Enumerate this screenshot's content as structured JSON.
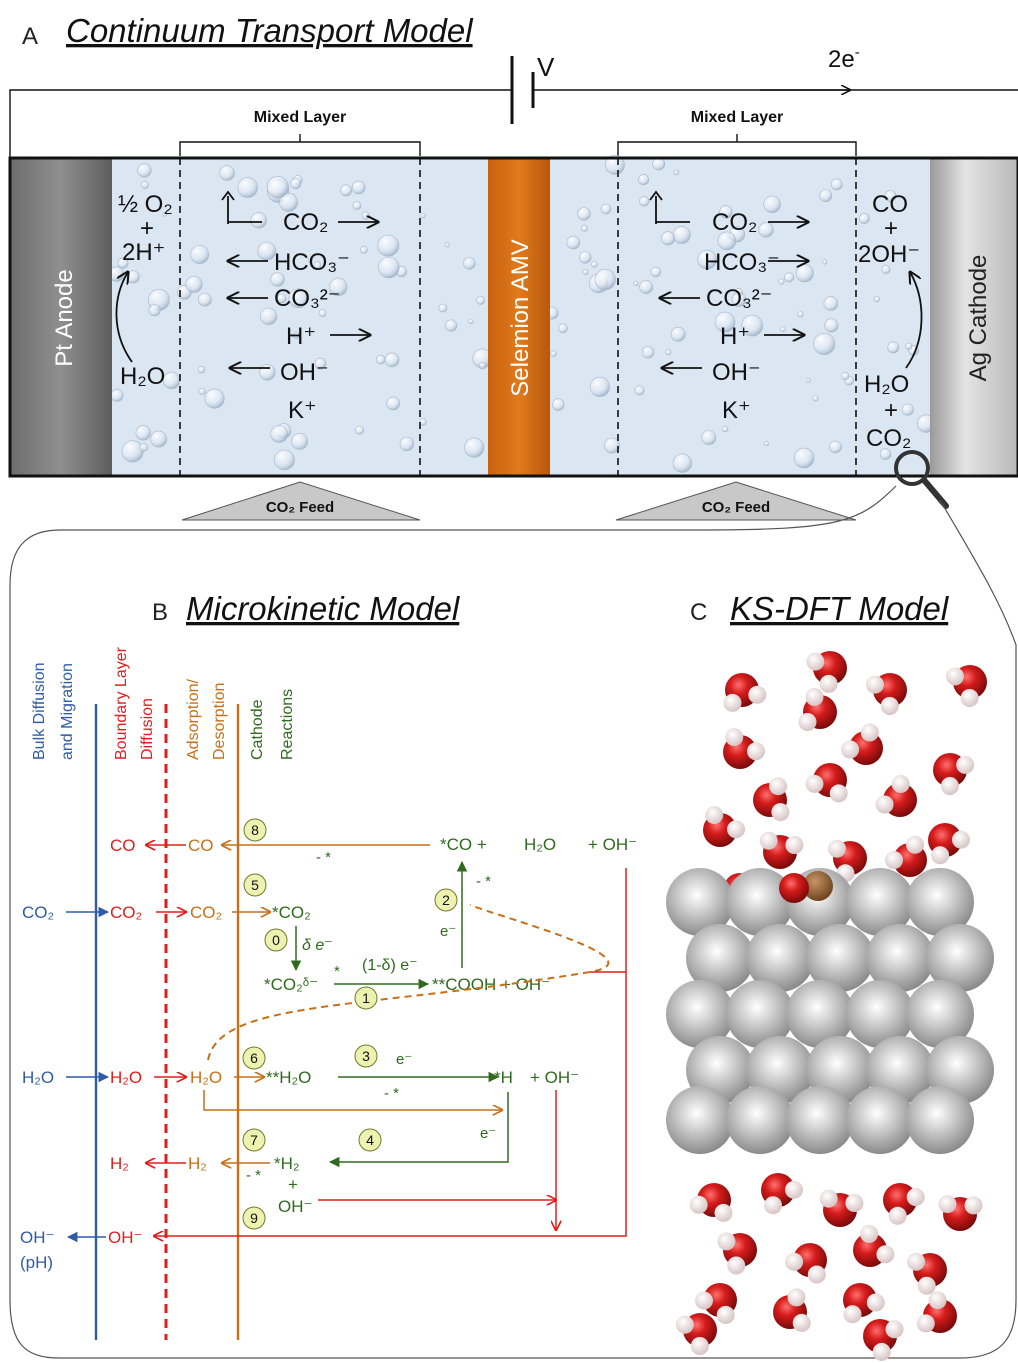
{
  "panel_a": {
    "letter": "A",
    "title": "Continuum Transport Model",
    "voltage": "V",
    "electrons": "2e",
    "electrons_sup": "-",
    "mixed_layer_left": "Mixed Layer",
    "mixed_layer_right": "Mixed Layer",
    "anode": "Pt Anode",
    "membrane": "Selemion AMV",
    "cathode": "Ag Cathode",
    "co2_feed_left": "CO₂ Feed",
    "co2_feed_right": "CO₂ Feed",
    "anode_reaction": {
      "top1": "½ O₂",
      "plus": "+",
      "top2": "2H⁺",
      "bottom": "H₂O"
    },
    "cathode_reaction": {
      "top1": "CO",
      "plus": "+",
      "top2": "2OH⁻",
      "bottom1": "H₂O",
      "plus2": "+",
      "bottom2": "CO₂"
    },
    "species": [
      "CO₂",
      "HCO₃⁻",
      "CO₃²⁻",
      "H⁺",
      "OH⁻",
      "K⁺"
    ]
  },
  "panel_b": {
    "letter": "B",
    "title": "Microkinetic Model",
    "col_headers": {
      "bulk": [
        "Bulk Diffusion",
        "and Migration"
      ],
      "boundary": [
        "Boundary Layer",
        "Diffusion"
      ],
      "adsorption": [
        "Adsorption/",
        "Desorption"
      ],
      "cathode": [
        "Cathode",
        "Reactions"
      ]
    },
    "labels": {
      "bulk_co2": "CO₂",
      "bulk_h2o": "H₂O",
      "bulk_oh": "OH⁻",
      "bulk_ph": "(pH)",
      "bl_co": "CO",
      "bl_co2": "CO₂",
      "bl_h2o": "H₂O",
      "bl_h2": "H₂",
      "bl_oh": "OH⁻",
      "ad_co": "CO",
      "ad_co2": "CO₂",
      "ad_h2o": "H₂O",
      "ad_h2": "H₂",
      "r_co2ads": "*CO₂",
      "r_delta": "δ e⁻",
      "r_co2delta": "*CO₂ᵟ⁻",
      "r_star": "*",
      "r_one_minus_delta": "(1-δ) e⁻",
      "r_cooh": "**COOH + OH⁻",
      "r_co_top": "*CO +",
      "r_h2o_top": "H₂O",
      "r_oh_top": "+ OH⁻",
      "r_minus_star_8": "- *",
      "r_minus_star_2": "- *",
      "r_e_2": "e⁻",
      "r_h2o_ads": "**H₂O",
      "r_e_3": "e⁻",
      "r_minus_star_3": "- *",
      "r_h": "*H",
      "r_oh_3": "+ OH⁻",
      "r_e_4": "e⁻",
      "r_h2_ads": "*H₂",
      "r_plus_7": "+",
      "r_oh_7": "OH⁻",
      "r_minus_star_7": "- *"
    },
    "steps": [
      "0",
      "1",
      "2",
      "3",
      "4",
      "5",
      "6",
      "7",
      "8",
      "9"
    ]
  },
  "panel_c": {
    "letter": "C",
    "title": "KS-DFT Model"
  },
  "colors": {
    "blue": "#2f5ca8",
    "red": "#e01e1e",
    "orange": "#c96f16",
    "green": "#2f6b1f",
    "membrane": "#d2691e",
    "electrolyte": "#dbe6f3",
    "oxygen": "#cc1a1a",
    "hydrogen": "#f1dede",
    "silver": "#a9a9a9",
    "carbon": "#8b5a2b",
    "step_badge": "#eef2b0"
  }
}
